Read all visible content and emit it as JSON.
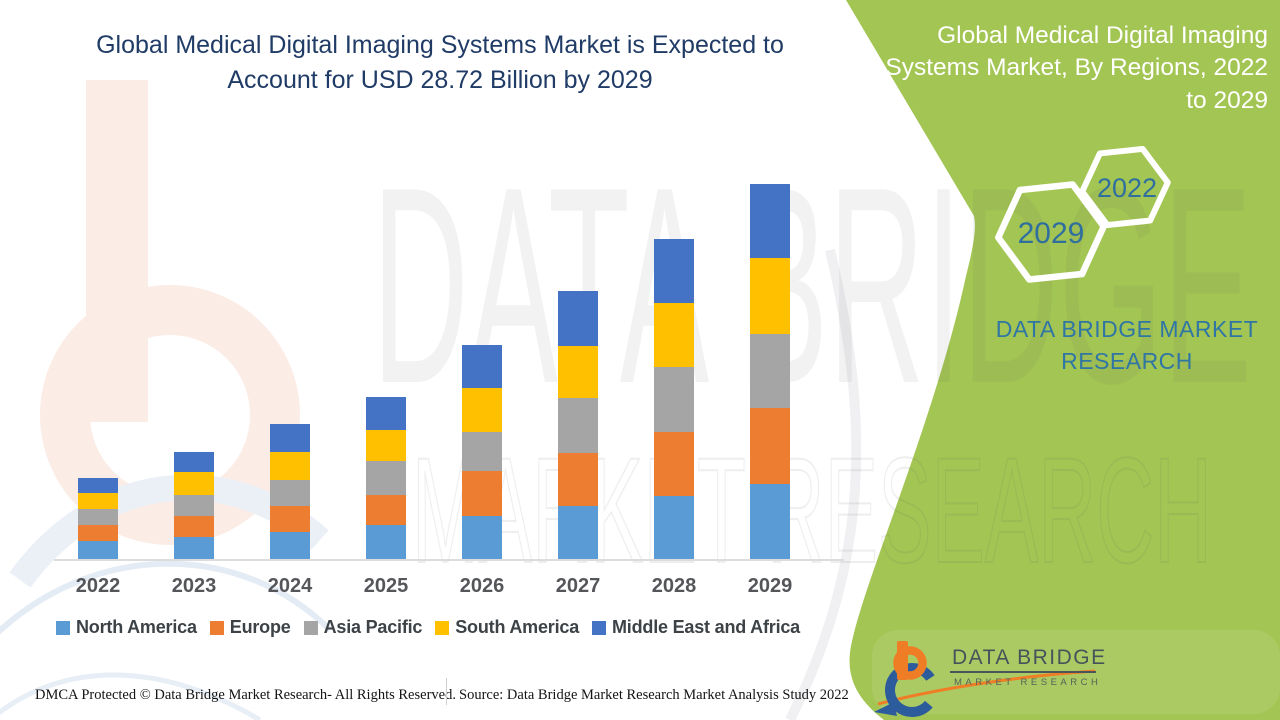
{
  "header": {
    "title_lines": [
      "Global Medical Digital Imaging Systems Market is Expected to",
      "Account for USD 28.72 Billion by 2029"
    ],
    "title_color": "#1f3b66"
  },
  "sidebar": {
    "bg_color": "#a3c553",
    "title_lines": [
      "Global Medical Digital Imaging",
      "Systems Market, By Regions, 2022",
      "to 2029"
    ],
    "badges": [
      {
        "label": "2029"
      },
      {
        "label": "2022"
      }
    ],
    "badge_text_color": "#2f6f9f",
    "brand_text": "DATA BRIDGE MARKET RESEARCH",
    "brand_text_color": "#3076a4",
    "logo": {
      "title": "DATA BRIDGE",
      "subtitle": "MARKET RESEARCH"
    }
  },
  "watermark": {
    "line1": "DATA BRIDGE",
    "line2": "MARKET RESEARCH"
  },
  "chart_data": {
    "type": "bar",
    "stacked": true,
    "title": "Global Medical Digital Imaging Systems Market is Expected to Account for USD 28.72 Billion by 2029",
    "unit": "USD Billion",
    "categories": [
      "2022",
      "2023",
      "2024",
      "2025",
      "2026",
      "2027",
      "2028",
      "2029"
    ],
    "series": [
      {
        "name": "North America",
        "color": "#5B9BD5",
        "values": [
          1.38,
          1.68,
          2.07,
          2.6,
          3.29,
          4.06,
          4.83,
          5.74
        ]
      },
      {
        "name": "Europe",
        "color": "#ED7D31",
        "values": [
          1.23,
          1.61,
          1.99,
          2.3,
          3.45,
          4.06,
          4.9,
          5.82
        ]
      },
      {
        "name": "Asia Pacific",
        "color": "#A5A5A5",
        "values": [
          1.23,
          1.61,
          1.99,
          2.6,
          2.99,
          4.21,
          4.98,
          5.67
        ]
      },
      {
        "name": "South America",
        "color": "#FFC000",
        "values": [
          1.23,
          1.76,
          2.14,
          2.37,
          3.37,
          3.98,
          4.9,
          5.82
        ]
      },
      {
        "name": "Middle East and Africa",
        "color": "#4472C4",
        "values": [
          1.15,
          1.53,
          2.14,
          2.53,
          3.29,
          4.21,
          4.9,
          5.67
        ]
      }
    ],
    "totals": [
      6.22,
      8.19,
      10.33,
      12.4,
      16.39,
      20.52,
      24.51,
      28.72
    ],
    "ylim": [
      0,
      30
    ],
    "y_axis_visible": false,
    "grid": false,
    "legend_position": "bottom",
    "annotation": "USD 28.72 Billion by 2029"
  },
  "footer": {
    "dmca": "DMCA Protected © Data Bridge Market Research- All Rights Reserved.",
    "source": "Source: Data Bridge Market Research Market Analysis Study 2022"
  }
}
